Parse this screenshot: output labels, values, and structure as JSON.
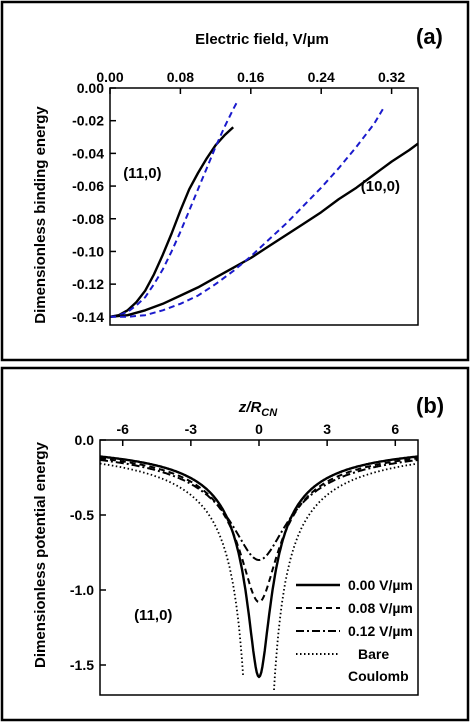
{
  "chart_data": [
    {
      "panel_label": "(a)",
      "type": "line",
      "xlabel": "Electric field,  V/µm",
      "ylabel": "Dimensionless binding energy",
      "xlim": [
        0,
        0.35
      ],
      "ylim": [
        -0.145,
        0.0
      ],
      "xticks": [
        "0.00",
        "0.08",
        "0.16",
        "0.24",
        "0.32"
      ],
      "xtick_values": [
        0,
        0.08,
        0.16,
        0.24,
        0.32
      ],
      "yticks": [
        "0.00",
        "-0.02",
        "-0.04",
        "-0.06",
        "-0.08",
        "-0.10",
        "-0.12",
        "-0.14"
      ],
      "ytick_values": [
        0,
        -0.02,
        -0.04,
        -0.06,
        -0.08,
        -0.1,
        -0.12,
        -0.14
      ],
      "x_axis_position": "top",
      "annotations": [
        {
          "text": "(11,0)",
          "x": 0.015,
          "y": -0.055
        },
        {
          "text": "(10,0)",
          "x": 0.285,
          "y": -0.063
        }
      ],
      "series": [
        {
          "color": "#000000",
          "dash": "solid",
          "x": [
            0,
            0.01,
            0.02,
            0.03,
            0.04,
            0.05,
            0.06,
            0.07,
            0.08,
            0.09,
            0.1,
            0.11,
            0.12,
            0.13,
            0.14
          ],
          "y": [
            -0.14,
            -0.139,
            -0.136,
            -0.131,
            -0.124,
            -0.114,
            -0.102,
            -0.089,
            -0.075,
            -0.062,
            -0.052,
            -0.043,
            -0.035,
            -0.029,
            -0.024
          ]
        },
        {
          "color": "#1a1acc",
          "dash": "dashed",
          "x": [
            0,
            0.01,
            0.02,
            0.03,
            0.04,
            0.05,
            0.06,
            0.07,
            0.08,
            0.09,
            0.1,
            0.11,
            0.12,
            0.13,
            0.14,
            0.145
          ],
          "y": [
            -0.14,
            -0.139,
            -0.137,
            -0.133,
            -0.128,
            -0.12,
            -0.111,
            -0.1,
            -0.088,
            -0.075,
            -0.062,
            -0.049,
            -0.036,
            -0.024,
            -0.013,
            -0.008
          ]
        },
        {
          "color": "#000000",
          "dash": "solid",
          "x": [
            0,
            0.02,
            0.04,
            0.06,
            0.08,
            0.1,
            0.12,
            0.14,
            0.16,
            0.18,
            0.2,
            0.22,
            0.24,
            0.26,
            0.28,
            0.3,
            0.32,
            0.34,
            0.35
          ],
          "y": [
            -0.14,
            -0.139,
            -0.136,
            -0.132,
            -0.127,
            -0.122,
            -0.116,
            -0.11,
            -0.104,
            -0.097,
            -0.09,
            -0.083,
            -0.076,
            -0.068,
            -0.061,
            -0.053,
            -0.045,
            -0.038,
            -0.034
          ]
        },
        {
          "color": "#1a1acc",
          "dash": "dashed",
          "x": [
            0,
            0.02,
            0.04,
            0.06,
            0.08,
            0.1,
            0.12,
            0.14,
            0.16,
            0.18,
            0.2,
            0.22,
            0.24,
            0.26,
            0.28,
            0.3,
            0.31
          ],
          "y": [
            -0.14,
            -0.14,
            -0.139,
            -0.136,
            -0.132,
            -0.127,
            -0.12,
            -0.112,
            -0.103,
            -0.093,
            -0.083,
            -0.072,
            -0.061,
            -0.049,
            -0.036,
            -0.022,
            -0.013
          ]
        }
      ]
    },
    {
      "panel_label": "(b)",
      "type": "line",
      "xlabel": "z/R",
      "xlabel_sub": "CN",
      "ylabel": "Dimensionless potential energy",
      "xlim": [
        -7,
        7
      ],
      "ylim": [
        -1.7,
        0.0
      ],
      "xticks": [
        "-6",
        "-3",
        "0",
        "3",
        "6"
      ],
      "xtick_values": [
        -6,
        -3,
        0,
        3,
        6
      ],
      "yticks": [
        "0.0",
        "-0.5",
        "-1.0",
        "-1.5"
      ],
      "ytick_values": [
        0,
        -0.5,
        -1.0,
        -1.5
      ],
      "x_axis_position": "top",
      "annotations": [
        {
          "text": "(11,0)",
          "x": -5.5,
          "y": -1.2
        }
      ],
      "legend_position": "bottom-right",
      "series": [
        {
          "name": "0.00 V/µm",
          "color": "#000000",
          "dash": "solid",
          "depth": 1.58,
          "width": 0.6
        },
        {
          "name": "0.08 V/µm",
          "color": "#000000",
          "dash": "dashed",
          "depth": 1.08,
          "width": 0.75
        },
        {
          "name": "0.12 V/µm",
          "color": "#000000",
          "dash": "dashdot",
          "depth": 0.8,
          "width": 0.9
        },
        {
          "name": "Bare Coulomb",
          "name_lines": [
            "Bare",
            "Coulomb"
          ],
          "color": "#000000",
          "dash": "dotted",
          "depth": 0,
          "width": 0
        }
      ]
    }
  ]
}
